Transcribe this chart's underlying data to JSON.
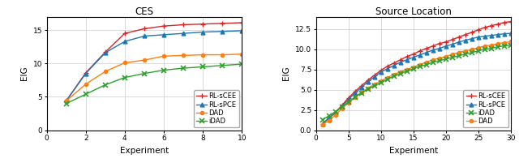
{
  "ces": {
    "title": "CES",
    "xlabel": "Experiment",
    "ylabel": "EIG",
    "xlim": [
      0,
      10
    ],
    "ylim": [
      0,
      17
    ],
    "xticks": [
      0,
      2,
      4,
      6,
      8,
      10
    ],
    "yticks": [
      0,
      5,
      10,
      15
    ],
    "x": [
      1,
      2,
      3,
      4,
      5,
      6,
      7,
      8,
      9,
      10
    ],
    "rl_scee": [
      4.4,
      8.6,
      11.7,
      14.5,
      15.2,
      15.6,
      15.8,
      15.9,
      16.0,
      16.1
    ],
    "rl_spce": [
      4.4,
      8.5,
      11.6,
      13.3,
      14.1,
      14.3,
      14.5,
      14.7,
      14.8,
      14.9
    ],
    "dad": [
      4.4,
      6.9,
      8.8,
      10.1,
      10.5,
      11.1,
      11.2,
      11.3,
      11.3,
      11.4
    ],
    "idad": [
      4.0,
      5.4,
      6.8,
      7.9,
      8.5,
      9.0,
      9.3,
      9.5,
      9.7,
      9.9
    ],
    "legend_order": [
      "RL-sCEE",
      "RL-sPCE",
      "DAD",
      "iDAD"
    ],
    "legend_loc": "lower right"
  },
  "source": {
    "title": "Source Location",
    "xlabel": "Experiment",
    "ylabel": "EIG",
    "xlim": [
      0,
      30
    ],
    "ylim": [
      0,
      14
    ],
    "xticks": [
      0,
      5,
      10,
      15,
      20,
      25,
      30
    ],
    "yticks": [
      0.0,
      2.5,
      5.0,
      7.5,
      10.0,
      12.5
    ],
    "x": [
      1,
      2,
      3,
      4,
      5,
      6,
      7,
      8,
      9,
      10,
      11,
      12,
      13,
      14,
      15,
      16,
      17,
      18,
      19,
      20,
      21,
      22,
      23,
      24,
      25,
      26,
      27,
      28,
      29,
      30
    ],
    "rl_scee": [
      0.8,
      1.5,
      2.2,
      3.1,
      4.0,
      4.8,
      5.5,
      6.2,
      6.8,
      7.4,
      7.9,
      8.3,
      8.7,
      9.1,
      9.4,
      9.8,
      10.1,
      10.4,
      10.7,
      10.9,
      11.2,
      11.5,
      11.8,
      12.1,
      12.4,
      12.7,
      12.9,
      13.1,
      13.3,
      13.4
    ],
    "rl_spce": [
      0.8,
      1.5,
      2.2,
      3.0,
      3.8,
      4.6,
      5.3,
      6.0,
      6.6,
      7.2,
      7.6,
      8.0,
      8.4,
      8.7,
      9.0,
      9.3,
      9.6,
      9.9,
      10.1,
      10.4,
      10.6,
      10.9,
      11.1,
      11.3,
      11.5,
      11.6,
      11.7,
      11.8,
      11.9,
      11.95
    ],
    "idad": [
      1.3,
      1.8,
      2.3,
      2.9,
      3.5,
      4.1,
      4.6,
      5.1,
      5.5,
      5.9,
      6.3,
      6.7,
      7.0,
      7.3,
      7.6,
      7.9,
      8.1,
      8.4,
      8.6,
      8.8,
      9.0,
      9.2,
      9.4,
      9.6,
      9.8,
      10.0,
      10.1,
      10.3,
      10.4,
      10.5
    ],
    "dad": [
      0.7,
      1.2,
      1.9,
      2.7,
      3.4,
      4.1,
      4.7,
      5.2,
      5.7,
      6.1,
      6.5,
      6.9,
      7.2,
      7.5,
      7.8,
      8.1,
      8.4,
      8.7,
      8.9,
      9.1,
      9.4,
      9.6,
      9.8,
      10.0,
      10.2,
      10.4,
      10.5,
      10.7,
      10.8,
      10.95
    ],
    "legend_order": [
      "RL-sCEE",
      "RL-sPCE",
      "iDAD",
      "DAD"
    ],
    "legend_loc": "lower right"
  },
  "colors": {
    "rl_scee": "#d62728",
    "rl_spce": "#1f77b4",
    "dad": "#ff7f0e",
    "idad": "#2ca02c"
  },
  "figsize": [
    6.4,
    2.06
  ],
  "dpi": 100
}
